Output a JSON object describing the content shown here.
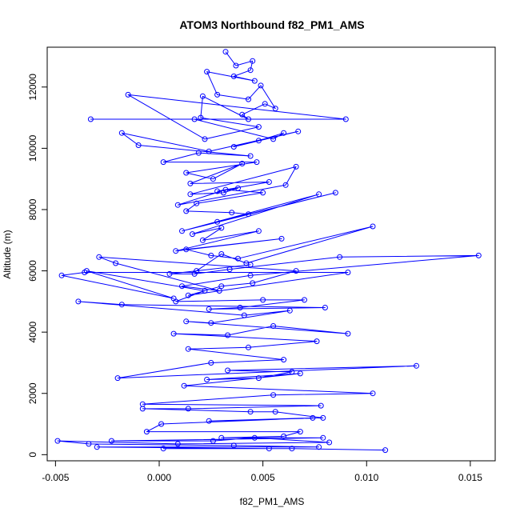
{
  "chart_data": {
    "type": "line",
    "title": "ATOM3 Northbound f82_PM1_AMS",
    "xlabel": "f82_PM1_AMS",
    "ylabel": "Altitude (m)",
    "xlim": [
      -0.0054,
      0.0162
    ],
    "ylim": [
      -200,
      13300
    ],
    "x_ticks": [
      -0.005,
      0.0,
      0.005,
      0.01,
      0.015
    ],
    "x_tick_labels": [
      "-0.005",
      "0.000",
      "0.005",
      "0.010",
      "0.015"
    ],
    "y_ticks": [
      0,
      2000,
      4000,
      6000,
      8000,
      10000,
      12000
    ],
    "y_tick_labels": [
      "0",
      "2000",
      "4000",
      "6000",
      "8000",
      "10000",
      "12000"
    ],
    "grid": false,
    "series_color": "#0000ff",
    "series": [
      {
        "x": [
          0.0032,
          0.0037,
          0.0045,
          0.0044,
          0.0036,
          0.0046,
          0.0023,
          0.0028,
          0.0043,
          0.0049,
          0.0056,
          0.0051,
          0.004,
          0.0043,
          0.0021,
          0.002,
          0.0048,
          0.0022,
          -0.0015,
          0.009,
          -0.0033,
          0.0017,
          0.0055,
          0.006,
          0.0048,
          0.0036,
          0.0067,
          0.0024,
          -0.0018,
          -0.001,
          0.0044,
          0.0019,
          0.0002,
          0.0047,
          0.0013,
          0.0026,
          0.004,
          0.0015,
          0.0053,
          0.0028,
          0.0038,
          0.0031,
          0.0015,
          0.0066,
          0.0061,
          0.0009,
          0.0032,
          0.005,
          0.0018,
          0.0013,
          0.0035,
          0.0043,
          0.0028,
          0.0085,
          0.0011,
          0.0077,
          0.0016,
          0.003,
          0.0021,
          0.0048,
          0.0008,
          0.0059,
          0.0013,
          0.0025,
          0.0038,
          0.0103,
          0.0042,
          0.003,
          0.0018,
          0.0044,
          0.0005,
          0.0017,
          0.0034,
          0.0087,
          0.0154,
          0.0044,
          0.0011,
          0.0029,
          -0.0021,
          -0.0029,
          0.0066,
          0.0045,
          0.003,
          0.0014,
          0.0091,
          -0.0036,
          -0.0047,
          0.0007,
          -0.0035,
          0.0022,
          0.0008,
          0.005,
          0.007,
          0.0039,
          0.0024,
          0.008,
          -0.0018,
          -0.0039,
          0.0041,
          0.0063,
          0.0025,
          0.0013,
          0.0091,
          0.0055,
          0.0033,
          0.0007,
          0.0076,
          0.0043,
          0.0014,
          0.006,
          0.0025,
          -0.002,
          0.0124,
          0.0033,
          0.0064,
          0.0048,
          0.0023,
          0.0068,
          0.0012,
          0.0103,
          0.0055,
          -0.0008,
          0.0078,
          0.0014,
          -0.0008,
          0.0044,
          0.0056,
          0.0079,
          0.0024,
          0.0074,
          0.0001,
          -0.0006,
          0.0068,
          0.006,
          0.003,
          0.0079,
          -0.0023,
          0.0026,
          0.0046,
          0.0082,
          0.0009,
          -0.0049,
          -0.0034,
          0.0036,
          0.0077,
          -0.003,
          0.0053,
          0.0002,
          0.0064,
          0.0109
        ],
        "y": [
          13150,
          12700,
          12850,
          12550,
          12350,
          12200,
          12500,
          11750,
          11600,
          12050,
          11300,
          11450,
          11100,
          10950,
          11700,
          11000,
          10700,
          10300,
          11750,
          10950,
          10950,
          10950,
          10300,
          10500,
          10250,
          10050,
          10550,
          9900,
          10500,
          10100,
          9750,
          9850,
          9550,
          9550,
          9200,
          9000,
          9500,
          8850,
          8900,
          8600,
          8700,
          8550,
          8500,
          9400,
          8800,
          8150,
          8650,
          8550,
          8200,
          7950,
          7900,
          7850,
          7600,
          8550,
          7300,
          8500,
          7200,
          7400,
          7000,
          7300,
          6650,
          7050,
          6700,
          6500,
          6400,
          7450,
          6250,
          6550,
          6000,
          6200,
          5900,
          5900,
          6050,
          6450,
          6500,
          5850,
          5500,
          5350,
          6250,
          6450,
          6000,
          5600,
          5500,
          5200,
          5950,
          5950,
          5850,
          5100,
          6000,
          5350,
          5000,
          5050,
          5050,
          4800,
          4750,
          4800,
          4900,
          5000,
          4550,
          4700,
          4300,
          4350,
          3950,
          4200,
          3900,
          3950,
          3700,
          3500,
          3450,
          3100,
          3000,
          2500,
          2900,
          2750,
          2700,
          2500,
          2450,
          2650,
          2250,
          2000,
          1950,
          1650,
          1600,
          1500,
          1500,
          1400,
          1400,
          1200,
          1100,
          1200,
          1000,
          750,
          750,
          600,
          550,
          550,
          450,
          450,
          550,
          400,
          350,
          450,
          350,
          300,
          250,
          250,
          200,
          200,
          200,
          150
        ]
      }
    ]
  }
}
